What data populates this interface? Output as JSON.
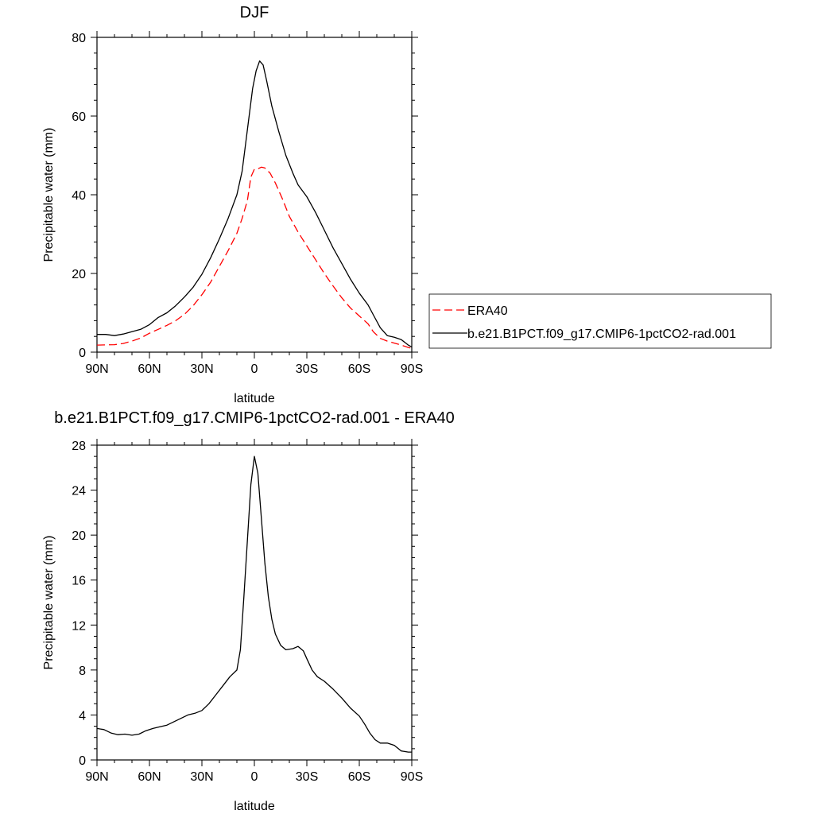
{
  "chart_data": [
    {
      "type": "line",
      "title": "DJF",
      "xlabel": "latitude",
      "ylabel": "Precipitable water (mm)",
      "ylim": [
        0,
        80
      ],
      "xlim": [
        -90,
        90
      ],
      "yticks": [
        0,
        20,
        40,
        60,
        80
      ],
      "xticks": [
        {
          "value": -90,
          "label": "90N"
        },
        {
          "value": -60,
          "label": "60N"
        },
        {
          "value": -30,
          "label": "30N"
        },
        {
          "value": 0,
          "label": "0"
        },
        {
          "value": 30,
          "label": "30S"
        },
        {
          "value": 60,
          "label": "60S"
        },
        {
          "value": 90,
          "label": "90S"
        }
      ],
      "legend_position": "right",
      "series": [
        {
          "name": "ERA40",
          "color": "#ff0000",
          "dash": "dashed",
          "points": [
            [
              -90,
              1.8
            ],
            [
              -80,
              1.9
            ],
            [
              -75,
              2.2
            ],
            [
              -70,
              2.8
            ],
            [
              -65,
              3.6
            ],
            [
              -60,
              4.8
            ],
            [
              -55,
              5.8
            ],
            [
              -50,
              6.8
            ],
            [
              -45,
              8.0
            ],
            [
              -40,
              9.6
            ],
            [
              -35,
              11.8
            ],
            [
              -30,
              14.6
            ],
            [
              -25,
              17.8
            ],
            [
              -20,
              21.8
            ],
            [
              -15,
              25.8
            ],
            [
              -10,
              30.2
            ],
            [
              -7,
              34.0
            ],
            [
              -4,
              38.5
            ],
            [
              -2,
              44.5
            ],
            [
              0,
              46.5
            ],
            [
              2,
              46.6
            ],
            [
              4,
              47.0
            ],
            [
              6,
              46.8
            ],
            [
              9,
              45.5
            ],
            [
              12,
              43.0
            ],
            [
              16,
              39.0
            ],
            [
              20,
              34.5
            ],
            [
              25,
              30.5
            ],
            [
              30,
              27.0
            ],
            [
              35,
              23.5
            ],
            [
              40,
              20.0
            ],
            [
              45,
              16.8
            ],
            [
              50,
              13.8
            ],
            [
              55,
              11.2
            ],
            [
              60,
              9.2
            ],
            [
              65,
              7.2
            ],
            [
              68,
              5.2
            ],
            [
              72,
              3.5
            ],
            [
              76,
              2.8
            ],
            [
              80,
              2.3
            ],
            [
              84,
              1.8
            ],
            [
              88,
              1.2
            ],
            [
              90,
              1.0
            ]
          ]
        },
        {
          "name": "b.e21.B1PCT.f09_g17.CMIP6-1pctCO2-rad.001",
          "color": "#000000",
          "dash": "solid",
          "points": [
            [
              -90,
              4.5
            ],
            [
              -85,
              4.5
            ],
            [
              -80,
              4.2
            ],
            [
              -75,
              4.6
            ],
            [
              -70,
              5.2
            ],
            [
              -65,
              5.8
            ],
            [
              -60,
              7.0
            ],
            [
              -55,
              8.8
            ],
            [
              -50,
              10.0
            ],
            [
              -45,
              11.8
            ],
            [
              -40,
              14.0
            ],
            [
              -35,
              16.5
            ],
            [
              -30,
              19.8
            ],
            [
              -25,
              24.0
            ],
            [
              -20,
              28.8
            ],
            [
              -15,
              34.0
            ],
            [
              -10,
              40.0
            ],
            [
              -7,
              46.0
            ],
            [
              -5,
              53.0
            ],
            [
              -3,
              60.0
            ],
            [
              -1,
              67.0
            ],
            [
              1,
              71.5
            ],
            [
              3,
              74.0
            ],
            [
              5,
              73.0
            ],
            [
              7,
              69.0
            ],
            [
              10,
              62.5
            ],
            [
              14,
              56.0
            ],
            [
              18,
              50.0
            ],
            [
              22,
              45.5
            ],
            [
              25,
              42.5
            ],
            [
              30,
              39.5
            ],
            [
              35,
              35.5
            ],
            [
              40,
              31.0
            ],
            [
              45,
              26.5
            ],
            [
              50,
              22.5
            ],
            [
              55,
              18.5
            ],
            [
              60,
              15.0
            ],
            [
              65,
              12.0
            ],
            [
              68,
              9.5
            ],
            [
              72,
              6.2
            ],
            [
              76,
              4.2
            ],
            [
              80,
              3.8
            ],
            [
              84,
              3.2
            ],
            [
              88,
              1.8
            ],
            [
              90,
              1.3
            ]
          ]
        }
      ]
    },
    {
      "type": "line",
      "title": "b.e21.B1PCT.f09_g17.CMIP6-1pctCO2-rad.001 - ERA40",
      "xlabel": "latitude",
      "ylabel": "Precipitable water (mm)",
      "ylim": [
        0,
        28
      ],
      "xlim": [
        -90,
        90
      ],
      "yticks": [
        0,
        4,
        8,
        12,
        16,
        20,
        24,
        28
      ],
      "xticks": [
        {
          "value": -90,
          "label": "90N"
        },
        {
          "value": -60,
          "label": "60N"
        },
        {
          "value": -30,
          "label": "30N"
        },
        {
          "value": 0,
          "label": "0"
        },
        {
          "value": 30,
          "label": "30S"
        },
        {
          "value": 60,
          "label": "60S"
        },
        {
          "value": 90,
          "label": "90S"
        }
      ],
      "series": [
        {
          "color": "#000000",
          "dash": "solid",
          "points": [
            [
              -90,
              2.8
            ],
            [
              -86,
              2.7
            ],
            [
              -82,
              2.4
            ],
            [
              -78,
              2.25
            ],
            [
              -74,
              2.3
            ],
            [
              -70,
              2.2
            ],
            [
              -66,
              2.3
            ],
            [
              -62,
              2.6
            ],
            [
              -58,
              2.8
            ],
            [
              -54,
              2.95
            ],
            [
              -50,
              3.1
            ],
            [
              -46,
              3.4
            ],
            [
              -42,
              3.7
            ],
            [
              -38,
              4.0
            ],
            [
              -34,
              4.15
            ],
            [
              -30,
              4.4
            ],
            [
              -26,
              5.0
            ],
            [
              -22,
              5.8
            ],
            [
              -18,
              6.6
            ],
            [
              -14,
              7.4
            ],
            [
              -10,
              8.0
            ],
            [
              -8,
              9.8
            ],
            [
              -6,
              14.5
            ],
            [
              -4,
              19.5
            ],
            [
              -2,
              24.5
            ],
            [
              0,
              27.0
            ],
            [
              2,
              25.5
            ],
            [
              4,
              21.5
            ],
            [
              6,
              17.5
            ],
            [
              8,
              14.5
            ],
            [
              10,
              12.5
            ],
            [
              12,
              11.2
            ],
            [
              15,
              10.2
            ],
            [
              18,
              9.8
            ],
            [
              22,
              9.9
            ],
            [
              25,
              10.1
            ],
            [
              28,
              9.7
            ],
            [
              30,
              9.0
            ],
            [
              33,
              8.0
            ],
            [
              36,
              7.4
            ],
            [
              40,
              7.0
            ],
            [
              45,
              6.3
            ],
            [
              50,
              5.5
            ],
            [
              55,
              4.6
            ],
            [
              60,
              3.9
            ],
            [
              63,
              3.2
            ],
            [
              66,
              2.4
            ],
            [
              69,
              1.8
            ],
            [
              72,
              1.5
            ],
            [
              76,
              1.5
            ],
            [
              80,
              1.3
            ],
            [
              84,
              0.8
            ],
            [
              88,
              0.7
            ],
            [
              90,
              0.7
            ]
          ]
        }
      ]
    }
  ]
}
